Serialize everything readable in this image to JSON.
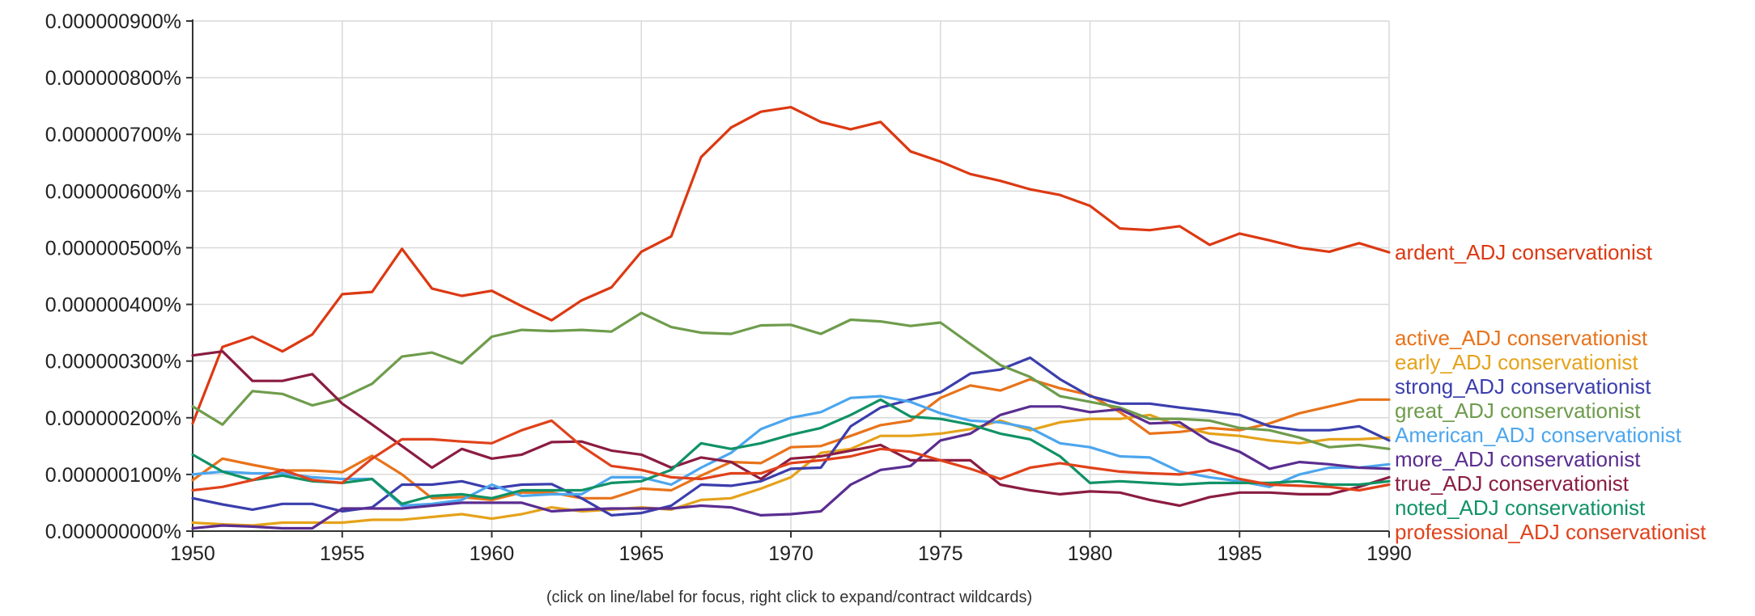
{
  "footer_note": "(click on line/label for focus, right click to expand/contract wildcards)",
  "chart_data": {
    "type": "line",
    "x_tick_labels": [
      "1950",
      "1955",
      "1960",
      "1965",
      "1970",
      "1975",
      "1980",
      "1985",
      "1990"
    ],
    "y_tick_labels": [
      "0.000000000%",
      "0.000000100%",
      "0.000000200%",
      "0.000000300%",
      "0.000000400%",
      "0.000000500%",
      "0.000000600%",
      "0.000000700%",
      "0.000000800%",
      "0.000000900%"
    ],
    "xlim": [
      1950,
      1990
    ],
    "ylim": [
      0,
      9e-07
    ],
    "value_unit": "percent",
    "grid": true,
    "legend_placement": "right",
    "x": [
      1950,
      1951,
      1952,
      1953,
      1954,
      1955,
      1956,
      1957,
      1958,
      1959,
      1960,
      1961,
      1962,
      1963,
      1964,
      1965,
      1966,
      1967,
      1968,
      1969,
      1970,
      1971,
      1972,
      1973,
      1974,
      1975,
      1976,
      1977,
      1978,
      1979,
      1980,
      1981,
      1982,
      1983,
      1984,
      1985,
      1986,
      1987,
      1988,
      1989,
      1990
    ],
    "series": [
      {
        "name": "ardent_ADJ conservationist",
        "color": "#dc3912",
        "values": [
          1.9e-07,
          3.25e-07,
          3.43e-07,
          3.17e-07,
          3.47e-07,
          4.18e-07,
          4.22e-07,
          4.98e-07,
          4.28e-07,
          4.15e-07,
          4.24e-07,
          3.97e-07,
          3.72e-07,
          4.07e-07,
          4.3e-07,
          4.93e-07,
          5.2e-07,
          6.6e-07,
          7.12e-07,
          7.4e-07,
          7.48e-07,
          7.22e-07,
          7.09e-07,
          7.22e-07,
          6.7e-07,
          6.52e-07,
          6.3e-07,
          6.18e-07,
          6.03e-07,
          5.93e-07,
          5.74e-07,
          5.34e-07,
          5.31e-07,
          5.38e-07,
          5.05e-07,
          5.25e-07,
          5.13e-07,
          5e-07,
          4.93e-07,
          5.08e-07,
          4.92e-07
        ]
      },
      {
        "name": "active_ADJ conservationist",
        "color": "#e8731a",
        "values": [
          9e-08,
          1.28e-07,
          1.17e-07,
          1.07e-07,
          1.07e-07,
          1.04e-07,
          1.33e-07,
          1e-07,
          5.8e-08,
          6e-08,
          5.5e-08,
          6.8e-08,
          6.8e-08,
          5.8e-08,
          5.8e-08,
          7.5e-08,
          7.2e-08,
          9.8e-08,
          1.22e-07,
          1.2e-07,
          1.48e-07,
          1.5e-07,
          1.68e-07,
          1.87e-07,
          1.95e-07,
          2.35e-07,
          2.57e-07,
          2.48e-07,
          2.68e-07,
          2.52e-07,
          2.4e-07,
          2.1e-07,
          1.72e-07,
          1.75e-07,
          1.82e-07,
          1.78e-07,
          1.9e-07,
          2.08e-07,
          2.2e-07,
          2.32e-07,
          2.32e-07
        ]
      },
      {
        "name": "early_ADJ conservationist",
        "color": "#e5a21a",
        "values": [
          1.5e-08,
          1.2e-08,
          1e-08,
          1.5e-08,
          1.5e-08,
          1.5e-08,
          2e-08,
          2e-08,
          2.5e-08,
          3e-08,
          2.2e-08,
          3e-08,
          4.2e-08,
          3.5e-08,
          3.8e-08,
          4.2e-08,
          3.8e-08,
          5.5e-08,
          5.8e-08,
          7.5e-08,
          9.5e-08,
          1.38e-07,
          1.45e-07,
          1.68e-07,
          1.68e-07,
          1.72e-07,
          1.8e-07,
          1.95e-07,
          1.78e-07,
          1.92e-07,
          1.98e-07,
          1.98e-07,
          2.05e-07,
          1.85e-07,
          1.72e-07,
          1.68e-07,
          1.6e-07,
          1.55e-07,
          1.62e-07,
          1.62e-07,
          1.65e-07
        ]
      },
      {
        "name": "strong_ADJ conservationist",
        "color": "#3b3eac",
        "values": [
          5.8e-08,
          4.7e-08,
          3.8e-08,
          4.8e-08,
          4.8e-08,
          3.5e-08,
          4.2e-08,
          8.2e-08,
          8.2e-08,
          8.8e-08,
          7.5e-08,
          8.2e-08,
          8.3e-08,
          5.8e-08,
          2.8e-08,
          3.2e-08,
          4.5e-08,
          8.2e-08,
          8e-08,
          8.8e-08,
          1.1e-07,
          1.12e-07,
          1.85e-07,
          2.18e-07,
          2.32e-07,
          2.45e-07,
          2.78e-07,
          2.85e-07,
          3.06e-07,
          2.68e-07,
          2.38e-07,
          2.25e-07,
          2.25e-07,
          2.18e-07,
          2.12e-07,
          2.05e-07,
          1.85e-07,
          1.78e-07,
          1.78e-07,
          1.85e-07,
          1.6e-07
        ]
      },
      {
        "name": "great_ADJ conservationist",
        "color": "#6e9c4c",
        "values": [
          2.2e-07,
          1.88e-07,
          2.47e-07,
          2.42e-07,
          2.22e-07,
          2.35e-07,
          2.6e-07,
          3.08e-07,
          3.15e-07,
          2.96e-07,
          3.43e-07,
          3.55e-07,
          3.53e-07,
          3.55e-07,
          3.52e-07,
          3.85e-07,
          3.6e-07,
          3.5e-07,
          3.48e-07,
          3.63e-07,
          3.64e-07,
          3.48e-07,
          3.73e-07,
          3.7e-07,
          3.62e-07,
          3.68e-07,
          3.3e-07,
          2.93e-07,
          2.72e-07,
          2.38e-07,
          2.28e-07,
          2.18e-07,
          1.98e-07,
          1.98e-07,
          1.95e-07,
          1.82e-07,
          1.78e-07,
          1.65e-07,
          1.48e-07,
          1.52e-07,
          1.45e-07
        ]
      },
      {
        "name": "American_ADJ conservationist",
        "color": "#4ca6ee",
        "values": [
          1e-07,
          1.05e-07,
          1.02e-07,
          1.02e-07,
          9.5e-08,
          9.2e-08,
          9.2e-08,
          4.5e-08,
          4.8e-08,
          5.5e-08,
          8.2e-08,
          6.2e-08,
          6.5e-08,
          6.5e-08,
          9.5e-08,
          9.5e-08,
          8.2e-08,
          1.12e-07,
          1.38e-07,
          1.8e-07,
          2e-07,
          2.1e-07,
          2.35e-07,
          2.38e-07,
          2.28e-07,
          2.08e-07,
          1.95e-07,
          1.92e-07,
          1.82e-07,
          1.55e-07,
          1.48e-07,
          1.32e-07,
          1.3e-07,
          1.05e-07,
          9.5e-08,
          8.8e-08,
          7.8e-08,
          1e-07,
          1.12e-07,
          1.12e-07,
          1.18e-07
        ]
      },
      {
        "name": "more_ADJ conservationist",
        "color": "#5a2d91",
        "values": [
          5e-09,
          1e-08,
          8e-09,
          5e-09,
          5e-09,
          4e-08,
          4e-08,
          4e-08,
          4.5e-08,
          5e-08,
          5e-08,
          5e-08,
          3.5e-08,
          3.8e-08,
          4e-08,
          4e-08,
          4e-08,
          4.5e-08,
          4.2e-08,
          2.8e-08,
          3e-08,
          3.5e-08,
          8.2e-08,
          1.08e-07,
          1.15e-07,
          1.6e-07,
          1.72e-07,
          2.05e-07,
          2.2e-07,
          2.2e-07,
          2.1e-07,
          2.15e-07,
          1.9e-07,
          1.92e-07,
          1.58e-07,
          1.4e-07,
          1.1e-07,
          1.22e-07,
          1.18e-07,
          1.12e-07,
          1.1e-07
        ]
      },
      {
        "name": "true_ADJ conservationist",
        "color": "#8b1c42",
        "values": [
          3.1e-07,
          3.17e-07,
          2.65e-07,
          2.65e-07,
          2.77e-07,
          2.25e-07,
          1.88e-07,
          1.5e-07,
          1.12e-07,
          1.45e-07,
          1.28e-07,
          1.35e-07,
          1.57e-07,
          1.58e-07,
          1.42e-07,
          1.35e-07,
          1.12e-07,
          1.3e-07,
          1.22e-07,
          9.2e-08,
          1.28e-07,
          1.32e-07,
          1.42e-07,
          1.52e-07,
          1.25e-07,
          1.25e-07,
          1.25e-07,
          8.2e-08,
          7.2e-08,
          6.5e-08,
          7e-08,
          6.8e-08,
          5.5e-08,
          4.5e-08,
          6e-08,
          6.8e-08,
          6.8e-08,
          6.5e-08,
          6.5e-08,
          7.8e-08,
          9.5e-08
        ]
      },
      {
        "name": "noted_ADJ conservationist",
        "color": "#109265",
        "values": [
          1.35e-07,
          1.05e-07,
          9e-08,
          9.8e-08,
          8.8e-08,
          8.5e-08,
          9.2e-08,
          4.8e-08,
          6.2e-08,
          6.5e-08,
          5.8e-08,
          7.2e-08,
          7.2e-08,
          7.2e-08,
          8.5e-08,
          8.8e-08,
          1.08e-07,
          1.55e-07,
          1.45e-07,
          1.55e-07,
          1.7e-07,
          1.82e-07,
          2.05e-07,
          2.32e-07,
          2.02e-07,
          1.98e-07,
          1.88e-07,
          1.72e-07,
          1.62e-07,
          1.32e-07,
          8.5e-08,
          8.8e-08,
          8.5e-08,
          8.2e-08,
          8.5e-08,
          8.5e-08,
          8.5e-08,
          8.8e-08,
          8.2e-08,
          8.2e-08,
          8.8e-08
        ]
      },
      {
        "name": "professional_ADJ conservationist",
        "color": "#e0421b",
        "values": [
          7.2e-08,
          7.8e-08,
          9e-08,
          1.08e-07,
          9e-08,
          8.5e-08,
          1.28e-07,
          1.62e-07,
          1.62e-07,
          1.58e-07,
          1.55e-07,
          1.78e-07,
          1.95e-07,
          1.5e-07,
          1.15e-07,
          1.08e-07,
          9.5e-08,
          9.2e-08,
          1.02e-07,
          1.02e-07,
          1.2e-07,
          1.25e-07,
          1.32e-07,
          1.45e-07,
          1.4e-07,
          1.25e-07,
          1.1e-07,
          9.2e-08,
          1.12e-07,
          1.2e-07,
          1.12e-07,
          1.05e-07,
          1.02e-07,
          1e-07,
          1.08e-07,
          9.2e-08,
          8.2e-08,
          8e-08,
          7.8e-08,
          7.2e-08,
          8.2e-08
        ]
      }
    ]
  }
}
